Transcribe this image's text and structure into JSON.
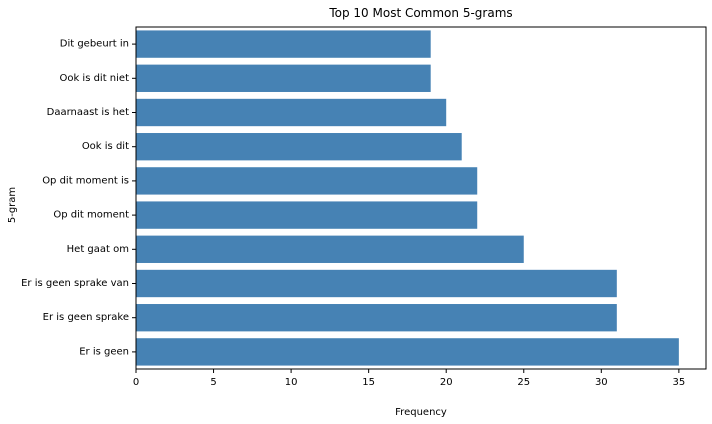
{
  "chart_data": {
    "type": "bar",
    "orientation": "horizontal",
    "title": "Top 10 Most Common 5-grams",
    "xlabel": "Frequency",
    "ylabel": "5-gram",
    "categories": [
      "Er is geen",
      "Er is geen sprake",
      "Er is geen sprake van",
      "Het gaat om",
      "Op dit moment",
      "Op dit moment is",
      "Ook is dit",
      "Daarnaast is het",
      "Ook is dit niet",
      "Dit gebeurt in"
    ],
    "values": [
      35,
      31,
      31,
      25,
      22,
      22,
      21,
      20,
      19,
      19
    ],
    "xlim": [
      0,
      36.75
    ],
    "xticks": [
      "0",
      "5",
      "10",
      "15",
      "20",
      "25",
      "30",
      "35"
    ],
    "bar_color": "#4682b4",
    "grid": false,
    "legend": "none"
  }
}
